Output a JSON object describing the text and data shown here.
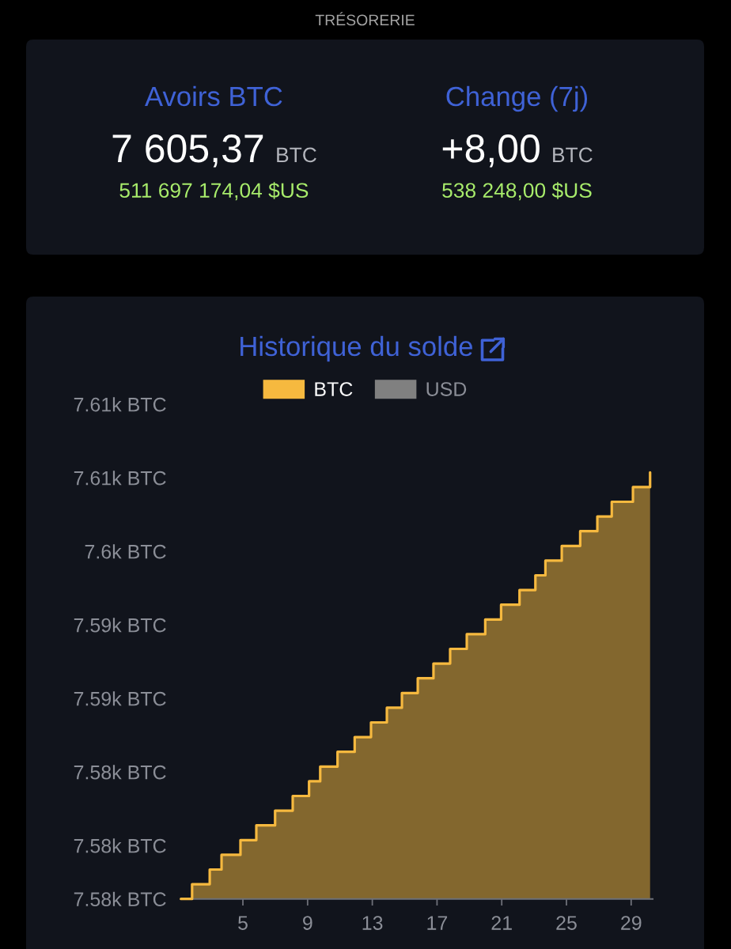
{
  "chart_data": [
    {
      "type": "other",
      "title": "TRÉSORERIE",
      "annotations": [
        "Avoirs BTC",
        "7 605,37",
        "BTC",
        "511 697 174,04 $US",
        "Change (7j)",
        "+8,00",
        "BTC",
        "538 248,00 $US"
      ]
    },
    {
      "type": "step",
      "title": "Historique du solde",
      "x": [
        1.17,
        1.86,
        2.95,
        3.68,
        4.85,
        5.83,
        6.99,
        8.08,
        9.09,
        9.78,
        10.85,
        11.91,
        12.92,
        13.9,
        14.83,
        15.81,
        16.78,
        17.81,
        18.84,
        19.98,
        20.96,
        22.1,
        23.08,
        23.7,
        24.71,
        25.85,
        26.91,
        27.8,
        29.11,
        30.17
      ],
      "series": [
        {
          "name": "BTC",
          "color": "#f6b93f",
          "values": [
            7576.37,
            7577.37,
            7578.37,
            7579.37,
            7580.37,
            7581.37,
            7582.37,
            7583.37,
            7584.37,
            7585.37,
            7586.37,
            7587.37,
            7588.37,
            7589.37,
            7590.37,
            7591.37,
            7592.37,
            7593.37,
            7594.37,
            7595.37,
            7596.37,
            7597.37,
            7598.37,
            7599.37,
            7600.37,
            7601.37,
            7602.37,
            7603.37,
            7604.37,
            7605.37
          ]
        },
        {
          "name": "USD",
          "color": "#808080",
          "values": [
            null,
            null,
            null,
            null,
            null,
            null,
            null,
            null,
            null,
            null,
            null,
            null,
            null,
            null,
            null,
            null,
            null,
            null,
            null,
            null,
            null,
            null,
            null,
            null,
            null,
            null,
            null,
            null,
            null,
            null
          ]
        }
      ],
      "xlim": [
        1.17,
        30.33
      ],
      "xticks": [
        5,
        9,
        13,
        17,
        21,
        25,
        29
      ],
      "ylim": [
        7576.37,
        7610
      ],
      "yticks": [
        {
          "value": 7576.37,
          "label": "7.58k BTC"
        },
        {
          "value": 7580,
          "label": "7.58k BTC"
        },
        {
          "value": 7585,
          "label": "7.58k BTC"
        },
        {
          "value": 7590,
          "label": "7.59k BTC"
        },
        {
          "value": 7595,
          "label": "7.59k BTC"
        },
        {
          "value": 7600,
          "label": "7.6k BTC"
        },
        {
          "value": 7605,
          "label": "7.61k BTC"
        },
        {
          "value": 7610,
          "label": "7.61k BTC"
        }
      ],
      "legend": "top"
    }
  ]
}
